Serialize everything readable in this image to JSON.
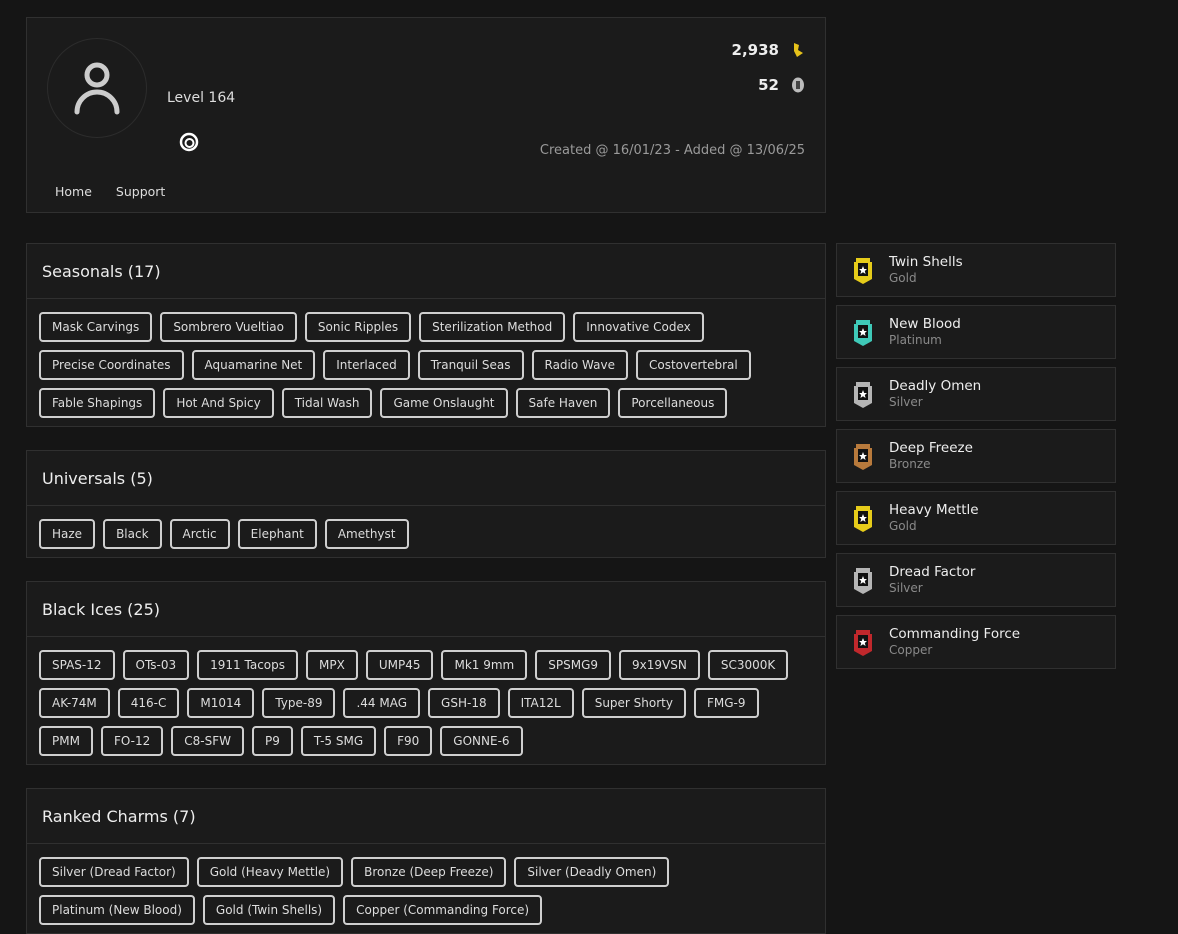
{
  "profile": {
    "level": "Level 164",
    "credits": "2,938",
    "renown": "52",
    "created": "Created @ 16/01/23 - Added @ 13/06/25",
    "nav": [
      "Home",
      "Support"
    ]
  },
  "sections": [
    {
      "title": "Seasonals (17)",
      "tags": [
        "Mask Carvings",
        "Sombrero Vueltiao",
        "Sonic Ripples",
        "Sterilization Method",
        "Innovative Codex",
        "Precise Coordinates",
        "Aquamarine Net",
        "Interlaced",
        "Tranquil Seas",
        "Radio Wave",
        "Costovertebral",
        "Fable Shapings",
        "Hot And Spicy",
        "Tidal Wash",
        "Game Onslaught",
        "Safe Haven",
        "Porcellaneous"
      ]
    },
    {
      "title": "Universals (5)",
      "tags": [
        "Haze",
        "Black",
        "Arctic",
        "Elephant",
        "Amethyst"
      ]
    },
    {
      "title": "Black Ices (25)",
      "tags": [
        "SPAS-12",
        "OTs-03",
        "1911 Tacops",
        "MPX",
        "UMP45",
        "Mk1 9mm",
        "SPSMG9",
        "9x19VSN",
        "SC3000K",
        "AK-74M",
        "416-C",
        "M1014",
        "Type-89",
        ".44 MAG",
        "GSH-18",
        "ITA12L",
        "Super Shorty",
        "FMG-9",
        "PMM",
        "FO-12",
        "C8-SFW",
        "P9",
        "T-5 SMG",
        "F90",
        "GONNE-6"
      ]
    },
    {
      "title": "Ranked Charms (7)",
      "tags": [
        "Silver (Dread Factor)",
        "Gold (Heavy Mettle)",
        "Bronze (Deep Freeze)",
        "Silver (Deadly Omen)",
        "Platinum (New Blood)",
        "Gold (Twin Shells)",
        "Copper (Commanding Force)"
      ]
    }
  ],
  "charms": [
    {
      "name": "Twin Shells",
      "tier": "Gold",
      "color": "#e6cc1a"
    },
    {
      "name": "New Blood",
      "tier": "Platinum",
      "color": "#3fc9b8"
    },
    {
      "name": "Deadly Omen",
      "tier": "Silver",
      "color": "#b5b5b5"
    },
    {
      "name": "Deep Freeze",
      "tier": "Bronze",
      "color": "#b87a3c"
    },
    {
      "name": "Heavy Mettle",
      "tier": "Gold",
      "color": "#e6cc1a"
    },
    {
      "name": "Dread Factor",
      "tier": "Silver",
      "color": "#b5b5b5"
    },
    {
      "name": "Commanding Force",
      "tier": "Copper",
      "color": "#c0282c"
    }
  ]
}
